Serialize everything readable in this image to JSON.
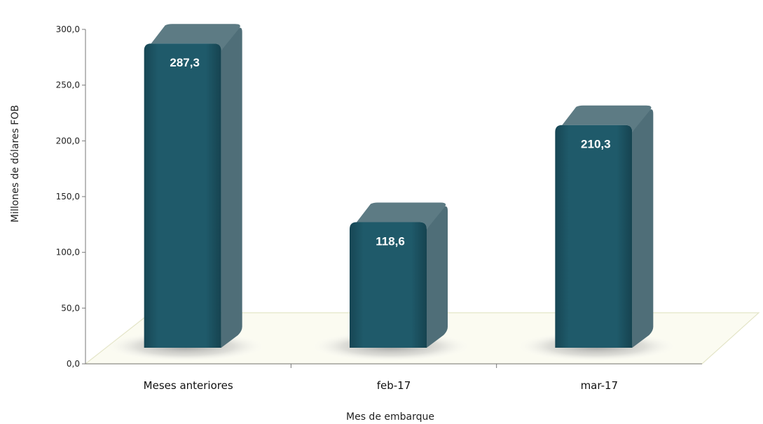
{
  "chart_data": {
    "type": "bar",
    "categories": [
      "Meses anteriores",
      "feb-17",
      "mar-17"
    ],
    "values": [
      287.3,
      118.6,
      210.3
    ],
    "value_labels": [
      "287,3",
      "118,6",
      "210,3"
    ],
    "xlabel": "Mes de embarque",
    "ylabel": "Millones de dólares FOB",
    "ylim": [
      0,
      300
    ],
    "yticks": [
      "0,0",
      "50,0",
      "100,0",
      "150,0",
      "200,0",
      "250,0",
      "300,0"
    ],
    "grid": false,
    "legend": "none",
    "colors": {
      "bar_front": "#1e5566",
      "bar_side": "#4f6e78",
      "bar_top": "#5d7b84",
      "floor": "#fbfbf1",
      "floor_edge": "#e4e5c8"
    }
  }
}
